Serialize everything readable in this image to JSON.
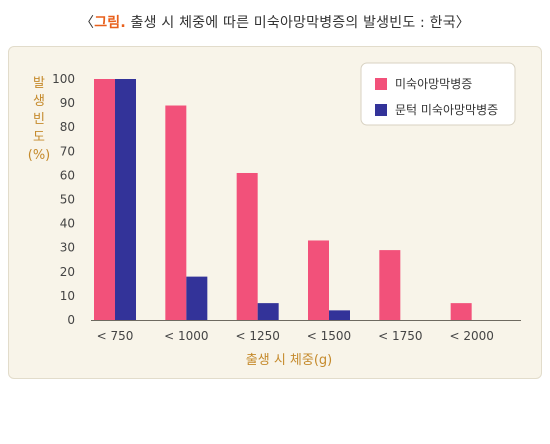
{
  "title": {
    "prefix": "〈",
    "tag": "그림.",
    "text": " 출생 시 체중에 따른 미숙아망막병증의 발생빈도 : 한국〉"
  },
  "chart_data": {
    "type": "bar",
    "title": "〈그림. 출생 시 체중에 따른 미숙아망막병증의 발생빈도 : 한국〉",
    "ylabel_lines": [
      "발",
      "생",
      "빈",
      "도",
      "(%)"
    ],
    "xlabel": "출생 시 체중(g)",
    "categories": [
      "< 750",
      "< 1000",
      "< 1250",
      "< 1500",
      "< 1750",
      "< 2000"
    ],
    "ylim": [
      0,
      100
    ],
    "yticks": [
      0,
      10,
      20,
      30,
      40,
      50,
      60,
      70,
      80,
      90,
      100
    ],
    "grid": false,
    "legend_position": "top-right",
    "series": [
      {
        "name": "미숙아망막병증",
        "color": "#f2517a",
        "values": [
          100,
          89,
          61,
          33,
          29,
          7
        ]
      },
      {
        "name": "문턱 미숙아망막병증",
        "color": "#333399",
        "values": [
          100,
          18,
          7,
          4,
          0,
          0
        ]
      }
    ]
  }
}
